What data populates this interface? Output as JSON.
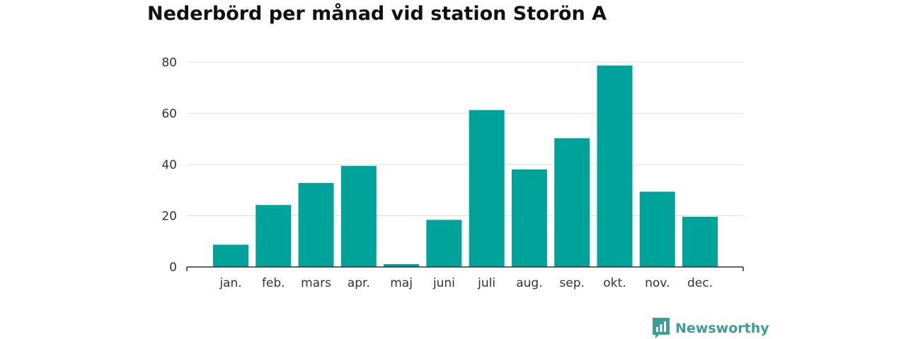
{
  "chart_data": {
    "type": "bar",
    "title": "Nederbörd per månad vid station Storön A",
    "categories": [
      "jan.",
      "feb.",
      "mars",
      "apr.",
      "maj",
      "juni",
      "juli",
      "aug.",
      "sep.",
      "okt.",
      "nov.",
      "dec."
    ],
    "values": [
      8.7,
      24.2,
      32.8,
      39.5,
      1.1,
      18.4,
      61.3,
      38.1,
      50.3,
      78.7,
      29.4,
      19.6
    ],
    "xlabel": "",
    "ylabel": "",
    "ylim": [
      0,
      80
    ],
    "yticks": [
      0,
      20,
      40,
      60,
      80
    ],
    "grid": true,
    "bar_color": "#00a39a"
  },
  "branding": {
    "name": "Newsworthy",
    "color": "#3e9e95",
    "icon": "newsworthy-logo-icon"
  }
}
